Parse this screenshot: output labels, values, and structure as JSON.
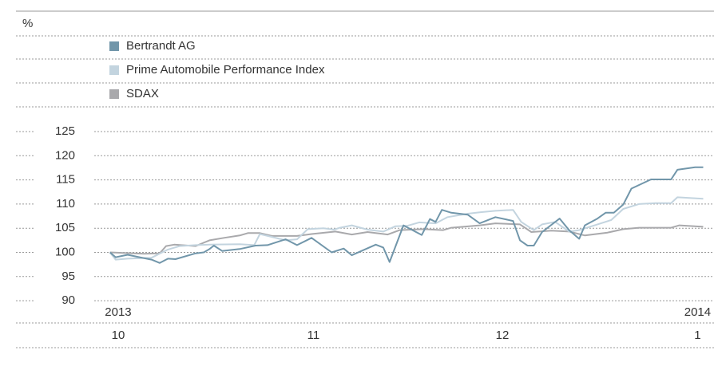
{
  "chart_data": {
    "type": "line",
    "unit_label": "%",
    "xlim": [
      -3.8,
      94.1
    ],
    "xticks": [
      {
        "value": 0,
        "label": "10"
      },
      {
        "value": 31,
        "label": "11"
      },
      {
        "value": 61,
        "label": "12"
      },
      {
        "value": 92,
        "label": "1"
      }
    ],
    "year_ticks": [
      {
        "value": 0,
        "label": "2013"
      },
      {
        "value": 92,
        "label": "2014"
      }
    ],
    "ylim": [
      88,
      127
    ],
    "yticks": [
      90,
      95,
      100,
      105,
      110,
      115,
      120,
      125
    ],
    "grid": true,
    "series": [
      {
        "name": "Bertrandt AG",
        "color": "#7196aa",
        "x": [
          -1.3,
          -0.4,
          1.5,
          3.4,
          5.3,
          6.6,
          7.9,
          9.1,
          12.3,
          13.6,
          14.5,
          15.2,
          16.5,
          19.3,
          21.8,
          23.7,
          26.6,
          28.4,
          30.7,
          33.9,
          35.8,
          37.1,
          40.9,
          42.1,
          43.1,
          45.3,
          48.2,
          49.5,
          50.4,
          51.4,
          52.9,
          55.5,
          57.4,
          59.9,
          62.7,
          63.8,
          65,
          66,
          67.3,
          70.1,
          71.6,
          73.2,
          74.1,
          76.1,
          77.4,
          78.7,
          80.2,
          81.5,
          84.6,
          87.8,
          88.8,
          91.6,
          92.9
        ],
        "values": [
          100,
          99,
          99.5,
          99,
          98.5,
          97.8,
          98.7,
          98.6,
          99.8,
          100,
          100.7,
          101.4,
          100.3,
          100.7,
          101.4,
          101.5,
          102.7,
          101.5,
          103,
          100,
          100.8,
          99.4,
          101.6,
          101,
          98,
          105.6,
          103.6,
          106.9,
          106.3,
          108.8,
          108.2,
          107.8,
          106,
          107.3,
          106.5,
          102.5,
          101.4,
          101.4,
          104.2,
          107,
          104.6,
          102.8,
          105.6,
          107,
          108.2,
          108.2,
          109.9,
          113.2,
          115.1,
          115.1,
          117.1,
          117.6,
          117.6
        ]
      },
      {
        "name": "Prime Automobile Performance Index",
        "color": "#c3d4df",
        "x": [
          -1.3,
          -0.4,
          1.5,
          5.3,
          7.9,
          9.8,
          12.3,
          14.5,
          19.3,
          21.6,
          22.5,
          24.4,
          26.6,
          28.4,
          30.1,
          32.6,
          34.3,
          35.2,
          37.1,
          39.6,
          42.1,
          44,
          45.9,
          47.8,
          50.4,
          52.3,
          55.5,
          57.4,
          59.9,
          62.7,
          64,
          66,
          67.3,
          69.4,
          71.6,
          73.2,
          76.1,
          78.3,
          80.2,
          82.7,
          85.3,
          87.8,
          88.8,
          92.9
        ],
        "values": [
          100,
          98.5,
          98.7,
          98.9,
          100.6,
          101.3,
          101.5,
          101.6,
          101.7,
          101.5,
          103.8,
          103.2,
          102.5,
          102.7,
          104.8,
          105,
          104.7,
          105.1,
          105.6,
          104.7,
          104.3,
          105.4,
          105.5,
          106.2,
          106,
          107.3,
          108,
          108.3,
          108.6,
          108.8,
          106.3,
          104.6,
          105.8,
          106.3,
          104.3,
          104.6,
          105.8,
          106.7,
          109,
          110,
          110.2,
          110.2,
          111.4,
          111.1
        ]
      },
      {
        "name": "SDAX",
        "color": "#a9a9ac",
        "x": [
          -1.3,
          4.1,
          6.6,
          7.6,
          8.9,
          12.3,
          14.5,
          16.8,
          19.3,
          20.6,
          22.5,
          24.4,
          28.4,
          30.7,
          34.5,
          37.1,
          39.6,
          42.8,
          44.7,
          48.5,
          51.6,
          52.9,
          57.4,
          59.9,
          63.8,
          65.6,
          68.8,
          71.6,
          74.1,
          77.7,
          80.2,
          82.7,
          87.8,
          89.1,
          92.9
        ],
        "values": [
          100,
          99.7,
          99.8,
          101.3,
          101.6,
          101.3,
          102.5,
          103,
          103.5,
          104,
          104,
          103.4,
          103.4,
          103.8,
          104.3,
          103.7,
          104.2,
          103.7,
          104.6,
          104.8,
          104.6,
          105.1,
          105.6,
          106,
          105.8,
          104.2,
          104.5,
          104.3,
          103.5,
          104.1,
          104.8,
          105.1,
          105.1,
          105.6,
          105.3
        ]
      }
    ]
  }
}
